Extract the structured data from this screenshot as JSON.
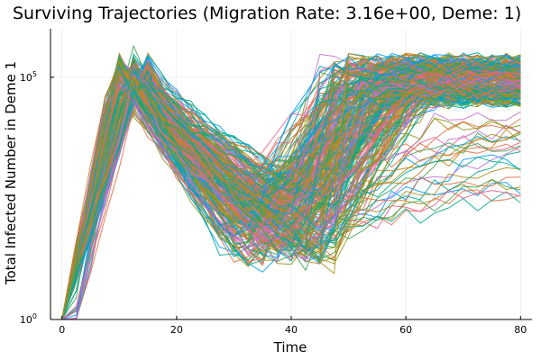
{
  "chart_data": {
    "type": "line",
    "title": "Surviving Trajectories (Migration Rate: 3.16e+00, Deme: 1)",
    "xlabel": "Time",
    "ylabel": "Total Infected Number in Deme 1",
    "xlim": [
      -2,
      82
    ],
    "y_scale": "log10",
    "ylim_log10": [
      0,
      6.0
    ],
    "grid": true,
    "legend": "none",
    "x_ticks": [
      0,
      20,
      40,
      60,
      80
    ],
    "y_ticks": [
      {
        "value": 1,
        "base": "10",
        "exp": "0"
      },
      {
        "value": 100000,
        "base": "10",
        "exp": "5"
      }
    ],
    "palette": [
      "#009AFA",
      "#E36F47",
      "#3EA44E",
      "#C371D2",
      "#AC8E18",
      "#00AAAE",
      "#ED5E93",
      "#C68225",
      "#00A98D",
      "#8E971E"
    ],
    "series_summary": {
      "count": 300,
      "x_step": 2.5,
      "x_range": [
        0,
        80
      ],
      "peak_time_range": [
        9,
        15
      ],
      "peak_log10_range": [
        5.1,
        5.55
      ],
      "trough_time_range": [
        28,
        48
      ],
      "trough_log10_range": [
        1.0,
        2.6
      ],
      "final_log10_range": [
        2.5,
        5.35
      ]
    }
  }
}
